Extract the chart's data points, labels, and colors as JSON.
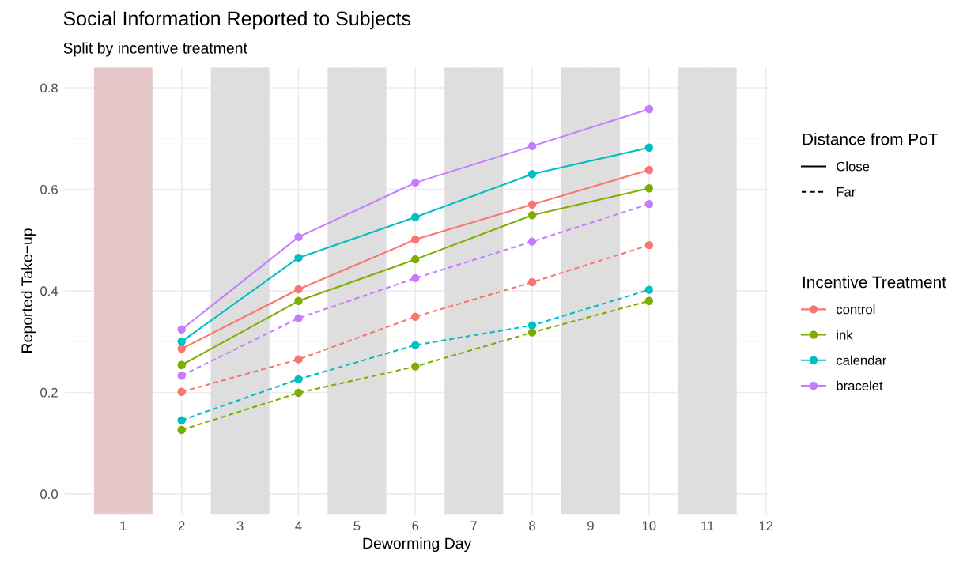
{
  "chart_data": {
    "type": "line",
    "title": "Social Information Reported to Subjects",
    "subtitle": "Split by incentive treatment",
    "xlabel": "Deworming Day",
    "ylabel": "Reported Take−up",
    "x": [
      2,
      4,
      6,
      8,
      10
    ],
    "series": [
      {
        "name": "control",
        "color": "#f8766d",
        "line_style": "solid",
        "values": [
          0.286,
          0.403,
          0.501,
          0.57,
          0.638
        ]
      },
      {
        "name": "ink",
        "color": "#7cae00",
        "line_style": "solid",
        "values": [
          0.254,
          0.38,
          0.462,
          0.549,
          0.602
        ]
      },
      {
        "name": "calendar",
        "color": "#00bfc4",
        "line_style": "solid",
        "values": [
          0.3,
          0.465,
          0.545,
          0.63,
          0.682
        ]
      },
      {
        "name": "bracelet",
        "color": "#c77cff",
        "line_style": "solid",
        "values": [
          0.324,
          0.506,
          0.613,
          0.685,
          0.758
        ]
      },
      {
        "color": "#f8766d",
        "line_style": "dashed",
        "values": [
          0.201,
          0.265,
          0.349,
          0.417,
          0.49
        ]
      },
      {
        "color": "#7cae00",
        "line_style": "dashed",
        "values": [
          0.126,
          0.199,
          0.251,
          0.318,
          0.38
        ]
      },
      {
        "color": "#00bfc4",
        "line_style": "dashed",
        "values": [
          0.145,
          0.226,
          0.293,
          0.332,
          0.402
        ]
      },
      {
        "color": "#c77cff",
        "line_style": "dashed",
        "values": [
          0.233,
          0.346,
          0.425,
          0.497,
          0.571
        ]
      }
    ],
    "annotations": [
      "Close",
      "Far"
    ],
    "legend_title": [
      "Distance from PoT",
      "Incentive Treatment"
    ],
    "legend": "right",
    "marker": "circle",
    "grid": true,
    "xlim": [
      0,
      12.05
    ],
    "xticks": [
      1,
      2,
      3,
      4,
      5,
      6,
      7,
      8,
      9,
      10,
      11,
      12
    ],
    "ylim": [
      -0.04,
      0.84
    ],
    "yticks": [
      {
        "value": 0,
        "label": "0.0"
      },
      {
        "value": 0.2,
        "label": "0.2"
      },
      {
        "value": 0.4,
        "label": "0.4"
      },
      {
        "value": 0.6,
        "label": "0.6"
      },
      {
        "value": 0.8,
        "label": "0.8"
      }
    ],
    "bands": [
      {
        "axis": "x",
        "from": 0.5,
        "to": 1.5,
        "color": "#e6c8ca"
      },
      {
        "axis": "x",
        "from": 2.5,
        "to": 3.5,
        "color": "#dedede"
      },
      {
        "axis": "x",
        "from": 4.5,
        "to": 5.5,
        "color": "#dedede"
      },
      {
        "axis": "x",
        "from": 6.5,
        "to": 7.5,
        "color": "#dedede"
      },
      {
        "axis": "x",
        "from": 8.5,
        "to": 9.5,
        "color": "#dedede"
      },
      {
        "axis": "x",
        "from": 10.5,
        "to": 11.5,
        "color": "#dedede"
      }
    ]
  }
}
